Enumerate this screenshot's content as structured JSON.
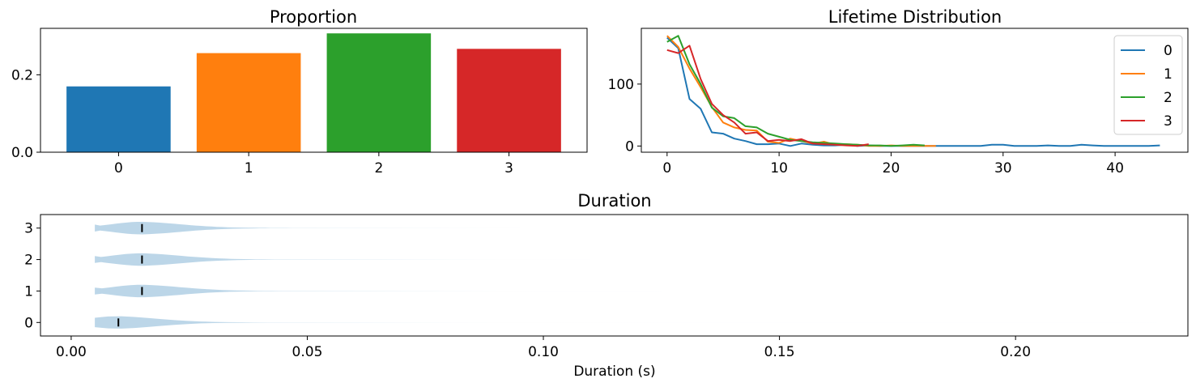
{
  "chart_data": [
    {
      "type": "bar",
      "title": "Proportion",
      "categories": [
        "0",
        "1",
        "2",
        "3"
      ],
      "values": [
        0.17,
        0.256,
        0.307,
        0.267
      ],
      "colors": [
        "#1f77b4",
        "#ff7f0e",
        "#2ca02c",
        "#d62728"
      ],
      "ylim": [
        0,
        0.32
      ],
      "yticks": [
        0.0,
        0.2
      ],
      "ytick_labels": [
        "0.0",
        "0.2"
      ]
    },
    {
      "type": "line",
      "title": "Lifetime Distribution",
      "xlim": [
        -2.3,
        46.5
      ],
      "ylim": [
        -10,
        190
      ],
      "xticks": [
        0,
        10,
        20,
        30,
        40
      ],
      "yticks": [
        0,
        100
      ],
      "legend": "top-right",
      "series": [
        {
          "name": "0",
          "color": "#1f77b4",
          "x": [
            0,
            1,
            2,
            3,
            4,
            5,
            6,
            7,
            8,
            9,
            10,
            11,
            12,
            13,
            14,
            15,
            16,
            17,
            18,
            19,
            20,
            21,
            22,
            23,
            24,
            25,
            26,
            27,
            28,
            29,
            30,
            31,
            32,
            33,
            34,
            35,
            36,
            37,
            38,
            39,
            40,
            41,
            42,
            43,
            44
          ],
          "y": [
            175,
            158,
            76,
            60,
            22,
            20,
            12,
            8,
            3,
            3,
            4,
            0,
            4,
            2,
            1,
            1,
            2,
            0,
            1,
            0,
            0,
            0,
            0,
            0,
            0,
            0,
            0,
            0,
            0,
            2,
            2,
            0,
            0,
            0,
            1,
            0,
            0,
            2,
            1,
            0,
            0,
            0,
            0,
            0,
            1
          ]
        },
        {
          "name": "1",
          "color": "#ff7f0e",
          "x": [
            0,
            1,
            2,
            3,
            4,
            5,
            6,
            7,
            8,
            9,
            10,
            11,
            12,
            13,
            14,
            15,
            16,
            17,
            18,
            19,
            20,
            21,
            22,
            23,
            24
          ],
          "y": [
            178,
            160,
            125,
            95,
            63,
            38,
            30,
            26,
            25,
            7,
            5,
            12,
            8,
            4,
            7,
            2,
            3,
            2,
            0,
            0,
            1,
            0,
            0,
            0,
            0
          ]
        },
        {
          "name": "2",
          "color": "#2ca02c",
          "x": [
            0,
            1,
            2,
            3,
            4,
            5,
            6,
            7,
            8,
            9,
            10,
            11,
            12,
            13,
            14,
            15,
            16,
            17,
            18,
            19,
            20,
            21,
            22,
            23
          ],
          "y": [
            168,
            178,
            132,
            100,
            62,
            48,
            45,
            32,
            30,
            20,
            15,
            10,
            8,
            6,
            5,
            4,
            3,
            2,
            1,
            1,
            0,
            1,
            2,
            1
          ]
        },
        {
          "name": "3",
          "color": "#d62728",
          "x": [
            0,
            1,
            2,
            3,
            4,
            5,
            6,
            7,
            8,
            9,
            10,
            11,
            12,
            13,
            14,
            15,
            16,
            17,
            18
          ],
          "y": [
            155,
            150,
            162,
            108,
            68,
            50,
            38,
            20,
            22,
            8,
            10,
            8,
            11,
            4,
            3,
            2,
            1,
            0,
            3
          ]
        }
      ]
    },
    {
      "type": "violin",
      "title": "Duration",
      "xlabel": "Duration (s)",
      "categories": [
        "0",
        "1",
        "2",
        "3"
      ],
      "xlim": [
        -0.0065,
        0.2365
      ],
      "xticks": [
        0.0,
        0.05,
        0.1,
        0.15,
        0.2
      ],
      "xtick_labels": [
        "0.00",
        "0.05",
        "0.10",
        "0.15",
        "0.20"
      ],
      "color": "#1f77b4",
      "medians": [
        0.01,
        0.015,
        0.015,
        0.015
      ],
      "min": [
        0.005,
        0.005,
        0.005,
        0.005
      ],
      "max": [
        0.23,
        0.125,
        0.11,
        0.095
      ]
    }
  ]
}
